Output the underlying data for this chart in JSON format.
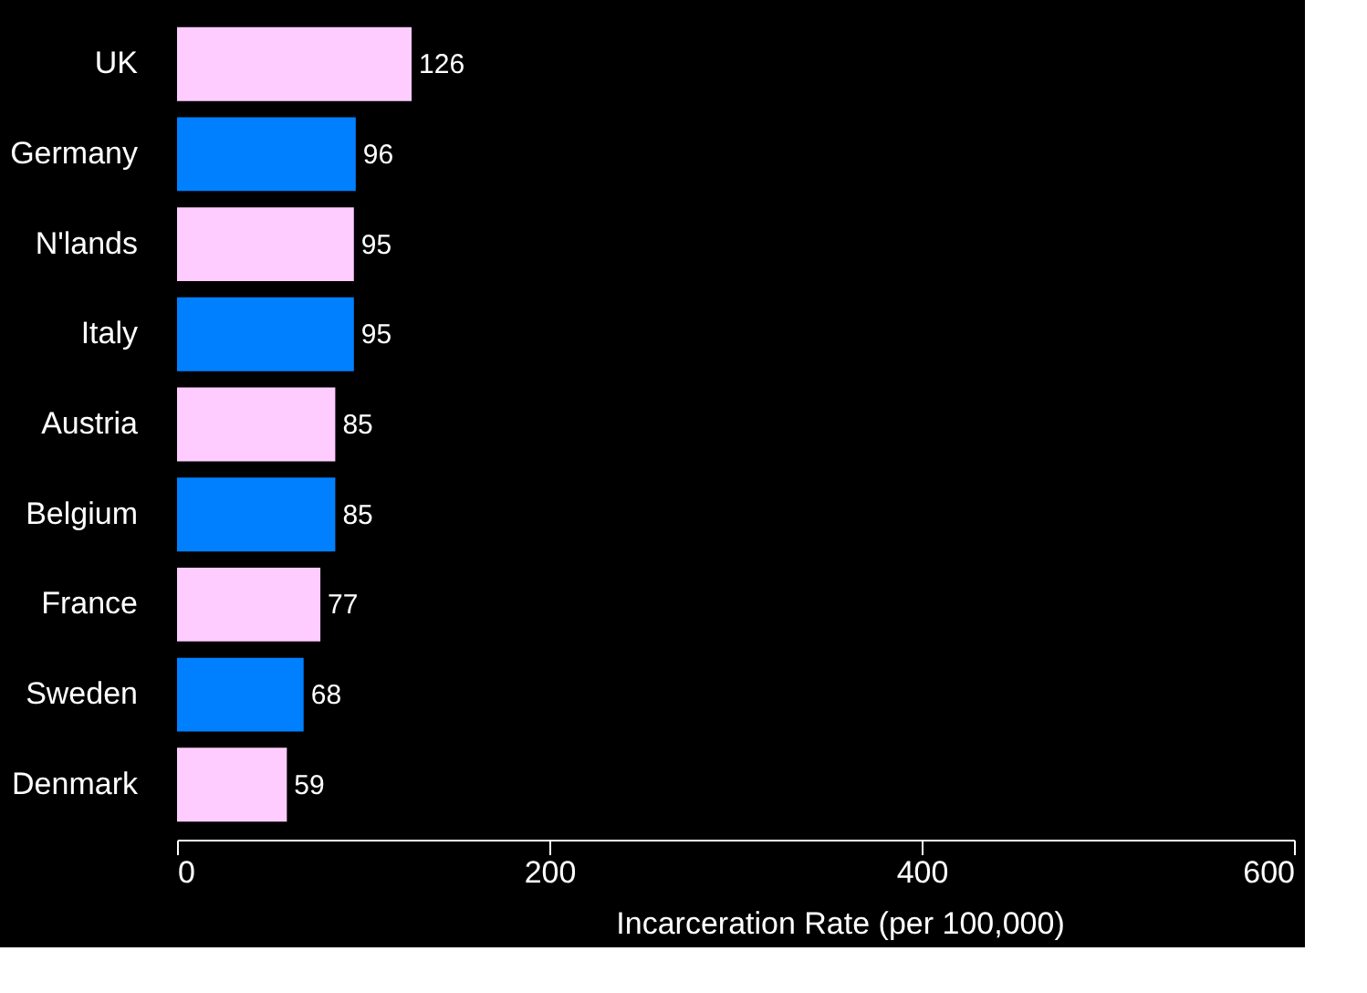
{
  "chart_data": {
    "type": "bar",
    "orientation": "horizontal",
    "xlabel": "Incarceration Rate (per 100,000)",
    "categories": [
      "UK",
      "Germany",
      "N'lands",
      "Italy",
      "Austria",
      "Belgium",
      "France",
      "Sweden",
      "Denmark"
    ],
    "values": [
      126,
      96,
      95,
      95,
      85,
      85,
      77,
      68,
      59
    ],
    "colors": [
      "#ffccff",
      "#0080ff",
      "#ffccff",
      "#0080ff",
      "#ffccff",
      "#0080ff",
      "#ffccff",
      "#0080ff",
      "#ffccff"
    ],
    "xlim": [
      0,
      600
    ],
    "xticks": [
      0,
      200,
      400,
      600
    ],
    "data_labels": true,
    "grid": false
  }
}
